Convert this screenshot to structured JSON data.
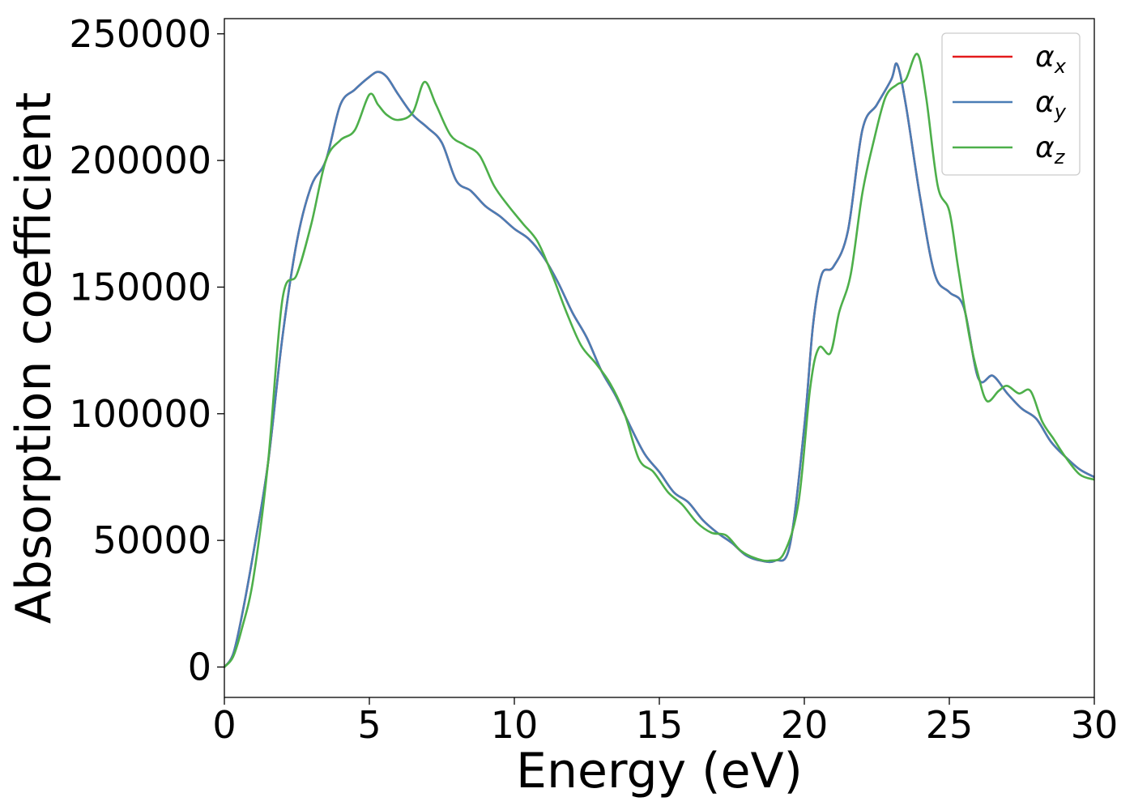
{
  "chart_data": {
    "type": "line",
    "title": "",
    "xlabel": "Energy (eV)",
    "ylabel": "Absorption coefficient",
    "xlim": [
      0,
      30
    ],
    "ylim": [
      -12000,
      256000
    ],
    "xticks": [
      0,
      5,
      10,
      15,
      20,
      25,
      30
    ],
    "xtick_labels": [
      "0",
      "5",
      "10",
      "15",
      "20",
      "25",
      "30"
    ],
    "yticks": [
      0,
      50000,
      100000,
      150000,
      200000,
      250000
    ],
    "ytick_labels": [
      "0",
      "50000",
      "100000",
      "150000",
      "200000",
      "250000"
    ],
    "grid": false,
    "legend_position": "top-right",
    "series": [
      {
        "name": "α_x",
        "legend_base": "α",
        "legend_sub": "x",
        "color": "#e41a1c",
        "x": [
          0,
          0.3,
          0.6,
          1.0,
          1.5,
          2.0,
          2.5,
          3.0,
          3.5,
          4.0,
          4.5,
          5.0,
          5.3,
          5.6,
          6.0,
          6.5,
          7.0,
          7.5,
          8.0,
          8.5,
          9.0,
          9.5,
          10.0,
          10.5,
          11.0,
          11.5,
          12.0,
          12.5,
          13.0,
          13.5,
          14.0,
          14.5,
          15.0,
          15.5,
          16.0,
          16.5,
          17.0,
          17.5,
          18.0,
          18.5,
          19.0,
          19.5,
          20.0,
          20.3,
          20.6,
          21.0,
          21.5,
          22.0,
          22.5,
          23.0,
          23.2,
          23.5,
          24.0,
          24.5,
          25.0,
          25.5,
          26.0,
          26.5,
          27.0,
          27.5,
          28.0,
          28.5,
          29.0,
          29.5,
          30.0
        ],
        "y": [
          0,
          5000,
          20000,
          45000,
          80000,
          130000,
          168000,
          190000,
          200000,
          222000,
          228000,
          233000,
          235000,
          233000,
          226000,
          218000,
          213000,
          207000,
          192000,
          188000,
          182000,
          178000,
          173000,
          169000,
          162000,
          152000,
          140000,
          130000,
          117000,
          107000,
          95000,
          84000,
          77000,
          69000,
          65000,
          58000,
          53000,
          49000,
          44000,
          42000,
          42000,
          48000,
          95000,
          135000,
          155000,
          158000,
          172000,
          212000,
          222000,
          232000,
          238000,
          222000,
          185000,
          155000,
          148000,
          142000,
          114000,
          115000,
          108000,
          102000,
          98000,
          89000,
          83000,
          78000,
          75000
        ]
      },
      {
        "name": "α_y",
        "legend_base": "α",
        "legend_sub": "y",
        "color": "#4a7db5",
        "x": [
          0,
          0.3,
          0.6,
          1.0,
          1.5,
          2.0,
          2.5,
          3.0,
          3.5,
          4.0,
          4.5,
          5.0,
          5.3,
          5.6,
          6.0,
          6.5,
          7.0,
          7.5,
          8.0,
          8.5,
          9.0,
          9.5,
          10.0,
          10.5,
          11.0,
          11.5,
          12.0,
          12.5,
          13.0,
          13.5,
          14.0,
          14.5,
          15.0,
          15.5,
          16.0,
          16.5,
          17.0,
          17.5,
          18.0,
          18.5,
          19.0,
          19.5,
          20.0,
          20.3,
          20.6,
          21.0,
          21.5,
          22.0,
          22.5,
          23.0,
          23.2,
          23.5,
          24.0,
          24.5,
          25.0,
          25.5,
          26.0,
          26.5,
          27.0,
          27.5,
          28.0,
          28.5,
          29.0,
          29.5,
          30.0
        ],
        "y": [
          0,
          5000,
          20000,
          45000,
          80000,
          130000,
          168000,
          190000,
          200000,
          222000,
          228000,
          233000,
          235000,
          233000,
          226000,
          218000,
          213000,
          207000,
          192000,
          188000,
          182000,
          178000,
          173000,
          169000,
          162000,
          152000,
          140000,
          130000,
          117000,
          107000,
          95000,
          84000,
          77000,
          69000,
          65000,
          58000,
          53000,
          49000,
          44000,
          42000,
          42000,
          48000,
          95000,
          135000,
          155000,
          158000,
          172000,
          212000,
          222000,
          232000,
          238000,
          222000,
          185000,
          155000,
          148000,
          142000,
          114000,
          115000,
          108000,
          102000,
          98000,
          89000,
          83000,
          78000,
          75000
        ]
      },
      {
        "name": "α_z",
        "legend_base": "α",
        "legend_sub": "z",
        "color": "#4daf4a",
        "x": [
          0,
          0.3,
          0.6,
          1.0,
          1.5,
          2.0,
          2.5,
          3.0,
          3.5,
          4.0,
          4.5,
          5.0,
          5.3,
          5.6,
          6.0,
          6.5,
          6.9,
          7.3,
          7.8,
          8.3,
          8.8,
          9.3,
          9.8,
          10.3,
          10.8,
          11.3,
          11.8,
          12.3,
          12.8,
          13.3,
          13.8,
          14.3,
          14.8,
          15.3,
          15.8,
          16.3,
          16.8,
          17.3,
          17.8,
          18.3,
          18.8,
          19.3,
          19.8,
          20.2,
          20.5,
          20.9,
          21.2,
          21.6,
          22.0,
          22.4,
          22.8,
          23.2,
          23.5,
          23.9,
          24.2,
          24.6,
          25.0,
          25.3,
          25.7,
          26.0,
          26.3,
          26.7,
          27.0,
          27.4,
          27.8,
          28.2,
          28.6,
          29.0,
          29.5,
          30.0
        ],
        "y": [
          0,
          4000,
          15000,
          35000,
          80000,
          145000,
          155000,
          175000,
          200000,
          208000,
          212000,
          226000,
          222000,
          218000,
          216000,
          219000,
          231000,
          222000,
          210000,
          206000,
          202000,
          190000,
          182000,
          175000,
          168000,
          155000,
          140000,
          127000,
          120000,
          112000,
          100000,
          82000,
          77000,
          69000,
          64000,
          57000,
          53000,
          52000,
          46000,
          43000,
          42000,
          45000,
          65000,
          110000,
          126000,
          124000,
          140000,
          155000,
          187000,
          208000,
          225000,
          230000,
          232000,
          242000,
          225000,
          190000,
          180000,
          158000,
          130000,
          115000,
          105000,
          109000,
          111000,
          108000,
          109000,
          97000,
          90000,
          83000,
          76000,
          74000
        ]
      }
    ]
  }
}
